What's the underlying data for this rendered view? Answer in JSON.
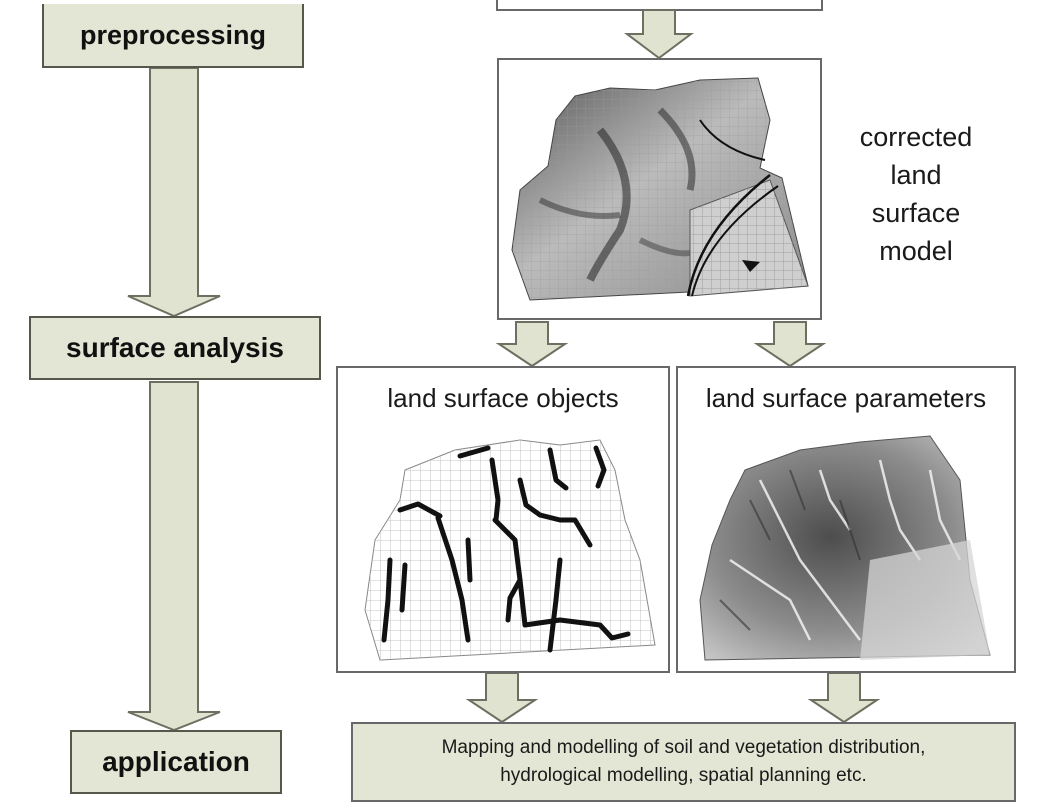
{
  "workflow": {
    "steps": [
      {
        "label": "preprocessing"
      },
      {
        "label": "surface analysis"
      },
      {
        "label": "application"
      }
    ]
  },
  "model": {
    "caption_lines": [
      "corrected",
      "land",
      "surface",
      "model"
    ]
  },
  "panels": {
    "objects": {
      "title": "land surface objects"
    },
    "parameters": {
      "title": "land surface parameters"
    }
  },
  "application_box": {
    "lines": [
      "Mapping and modelling of soil and vegetation distribution,",
      "hydrological modelling, spatial planning etc."
    ]
  },
  "colors": {
    "box_fill": "#e3e6d4",
    "box_border": "#55584a",
    "arrow_fill": "#e0e3cf",
    "arrow_stroke": "#6d7060"
  }
}
